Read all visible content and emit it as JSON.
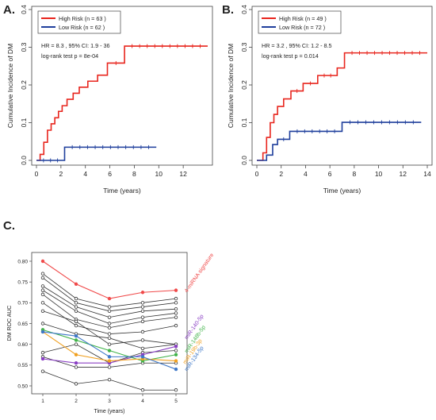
{
  "panels": {
    "a": "A.",
    "b": "B.",
    "c": "C."
  },
  "chart_data": [
    {
      "type": "line",
      "ylabel": "Cumulative Incidence of DM",
      "xlabel": "Time (years)",
      "xlim": [
        0,
        14
      ],
      "ylim": [
        0,
        0.4
      ],
      "xticks": [
        "0",
        "2",
        "4",
        "6",
        "8",
        "10",
        "12"
      ],
      "yticks": [
        "0.0",
        "0.1",
        "0.2",
        "0.3",
        "0.4"
      ],
      "legend_position": "top-left",
      "series": [
        {
          "name": "High Risk (n = 63 )",
          "color": "#e8251d",
          "x": [
            0,
            0.3,
            0.6,
            0.9,
            1.2,
            1.5,
            1.8,
            2.1,
            2.5,
            3.0,
            3.5,
            4.2,
            5.0,
            5.8,
            7.2,
            14
          ],
          "y": [
            0,
            0.016,
            0.048,
            0.08,
            0.097,
            0.113,
            0.13,
            0.145,
            0.162,
            0.178,
            0.194,
            0.21,
            0.226,
            0.258,
            0.303,
            0.303
          ]
        },
        {
          "name": "Low Risk (n = 62 )",
          "color": "#1f3f9c",
          "x": [
            0,
            2.3,
            9.8
          ],
          "y": [
            0,
            0.035,
            0.035
          ]
        }
      ],
      "annotations": [
        "HR = 8.3 , 95% CI: 1.9 - 36",
        "log-rank test  p = 8e-04"
      ]
    },
    {
      "type": "line",
      "ylabel": "Cumulative Incidence of DM",
      "xlabel": "Time (years)",
      "xlim": [
        0,
        14
      ],
      "ylim": [
        0,
        0.4
      ],
      "xticks": [
        "0",
        "2",
        "4",
        "6",
        "8",
        "10",
        "12",
        "14"
      ],
      "yticks": [
        "0.0",
        "0.1",
        "0.2",
        "0.3",
        "0.4"
      ],
      "legend_position": "top-left",
      "series": [
        {
          "name": "High Risk (n = 49 )",
          "color": "#e8251d",
          "x": [
            0,
            0.5,
            0.8,
            1.1,
            1.4,
            1.7,
            2.2,
            2.8,
            3.8,
            5.0,
            6.6,
            7.2,
            14
          ],
          "y": [
            0,
            0.02,
            0.061,
            0.1,
            0.122,
            0.143,
            0.163,
            0.184,
            0.204,
            0.225,
            0.245,
            0.285,
            0.285
          ]
        },
        {
          "name": "Low Risk (n = 72 )",
          "color": "#1f3f9c",
          "x": [
            0,
            0.8,
            1.3,
            1.7,
            2.7,
            7.0,
            13.5
          ],
          "y": [
            0,
            0.014,
            0.042,
            0.056,
            0.077,
            0.101,
            0.101
          ]
        }
      ],
      "annotations": [
        "HR = 3.2 , 95% CI: 1.2 - 8.5",
        "log-rank test  p = 0.014"
      ]
    },
    {
      "type": "line",
      "ylabel": "DM ROC AUC",
      "xlabel": "Time (years)",
      "xlim": [
        1,
        5
      ],
      "ylim": [
        0.5,
        0.8
      ],
      "xticks": [
        "1",
        "2",
        "3",
        "4",
        "5"
      ],
      "yticks": [
        "0.50",
        "0.55",
        "0.60",
        "0.65",
        "0.70",
        "0.75",
        "0.80"
      ],
      "series": [
        {
          "name": "4-miRNA signature",
          "color": "#f04a4a",
          "y": [
            0.8,
            0.745,
            0.71,
            0.725,
            0.73
          ]
        },
        {
          "name": "miR-140-5p",
          "color": "#8a3fc4",
          "y": [
            0.565,
            0.555,
            0.555,
            0.575,
            0.595
          ]
        },
        {
          "name": "miR-148b-5p",
          "color": "#41b34a",
          "y": [
            0.635,
            0.61,
            0.585,
            0.56,
            0.575
          ]
        },
        {
          "name": "miR-19b-3p",
          "color": "#f0a020",
          "y": [
            0.63,
            0.575,
            0.56,
            0.565,
            0.56
          ]
        },
        {
          "name": "miR-134-5p",
          "color": "#3f78c8",
          "y": [
            0.63,
            0.62,
            0.57,
            0.57,
            0.54
          ]
        },
        {
          "name": "",
          "color": "#333333",
          "y": [
            0.77,
            0.71,
            0.69,
            0.7,
            0.71
          ]
        },
        {
          "name": "",
          "color": "#333333",
          "y": [
            0.76,
            0.7,
            0.68,
            0.69,
            0.7
          ]
        },
        {
          "name": "",
          "color": "#333333",
          "y": [
            0.74,
            0.69,
            0.665,
            0.68,
            0.685
          ]
        },
        {
          "name": "",
          "color": "#333333",
          "y": [
            0.73,
            0.68,
            0.65,
            0.665,
            0.675
          ]
        },
        {
          "name": "",
          "color": "#333333",
          "y": [
            0.72,
            0.66,
            0.64,
            0.655,
            0.665
          ]
        },
        {
          "name": "",
          "color": "#333333",
          "y": [
            0.7,
            0.645,
            0.625,
            0.63,
            0.645
          ]
        },
        {
          "name": "",
          "color": "#333333",
          "y": [
            0.68,
            0.655,
            0.6,
            0.61,
            0.6
          ]
        },
        {
          "name": "",
          "color": "#333333",
          "y": [
            0.65,
            0.625,
            0.615,
            0.59,
            0.6
          ]
        },
        {
          "name": "",
          "color": "#333333",
          "y": [
            0.58,
            0.6,
            0.555,
            0.58,
            0.585
          ]
        },
        {
          "name": "",
          "color": "#333333",
          "y": [
            0.57,
            0.545,
            0.545,
            0.555,
            0.555
          ]
        },
        {
          "name": "",
          "color": "#333333",
          "y": [
            0.535,
            0.505,
            0.515,
            0.49,
            0.49
          ]
        }
      ]
    }
  ]
}
